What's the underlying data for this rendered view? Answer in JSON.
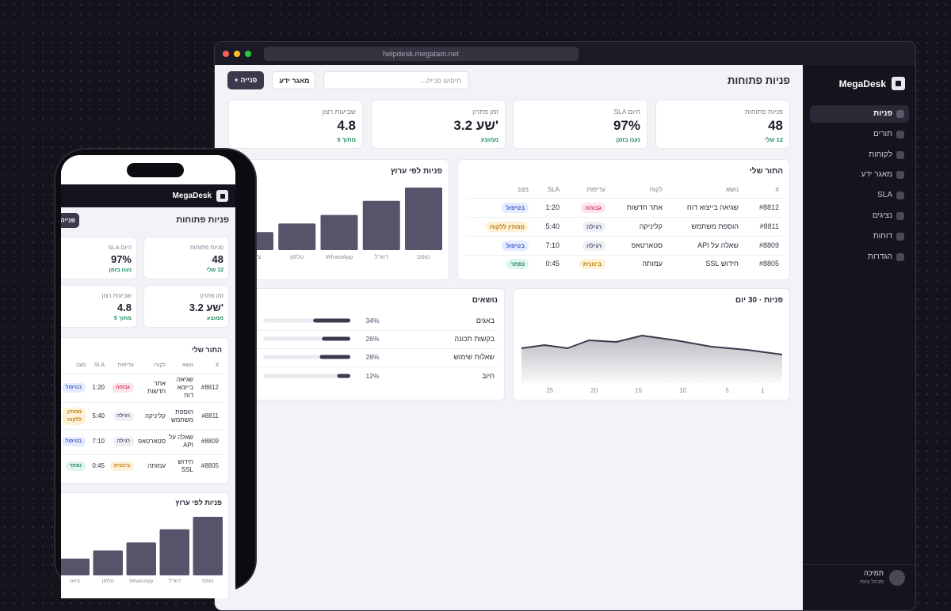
{
  "browser": {
    "url": "helpdesk.megatam.net"
  },
  "sidebar": {
    "brand": "MegaDesk",
    "nav": [
      "פניות",
      "תורים",
      "לקוחות",
      "מאגר ידע",
      "SLA",
      "נציגים",
      "דוחות",
      "הגדרות"
    ],
    "user": {
      "name": "תמיכה",
      "role": "מנהל צוות"
    }
  },
  "header": {
    "title": "פניות פתוחות",
    "search": "חיפוש פנייה...",
    "buttons": [
      "מאגר ידע",
      "+ פנייה"
    ]
  },
  "kpis": [
    {
      "label": "פניות פתוחות",
      "value": "48",
      "note": "12 שלי"
    },
    {
      "label": "SLA היום",
      "value": "97%",
      "note": "נענו בזמן"
    },
    {
      "label": "זמן פתרון",
      "value": "3.2 שע'",
      "note": "ממוצע"
    },
    {
      "label": "שביעות רצון",
      "value": "4.8",
      "note": "מתוך 5"
    }
  ],
  "queue": {
    "title": "התור שלי",
    "columns": [
      "#",
      "נושא",
      "לקוח",
      "עדיפות",
      "SLA",
      "מצב"
    ],
    "rows": [
      [
        "#8812",
        "שגיאה בייצוא דוח",
        "אתר חדשות",
        "גבוהה",
        "1:20",
        "בטיפול"
      ],
      [
        "#8811",
        "הוספת משתמש",
        "קליניקה",
        "רגילה",
        "5:40",
        "ממתין ללקוח"
      ],
      [
        "#8809",
        "שאלה על API",
        "סטארטאפ",
        "רגילה",
        "7:10",
        "בטיפול"
      ],
      [
        "#8805",
        "חידוש SSL",
        "עמותה",
        "בינונית",
        "0:45",
        "נפתר"
      ]
    ]
  },
  "chart_data": [
    {
      "type": "bar",
      "title": "פניות לפי ערוץ",
      "categories": [
        "טופס",
        "דוא\"ל",
        "WhatsApp",
        "טלפון",
        "צ'אט"
      ],
      "values": [
        80,
        63,
        45,
        34,
        23
      ],
      "color": "#55546a",
      "ylim": [
        0,
        80
      ]
    },
    {
      "type": "area",
      "title": "פניות · 30 יום",
      "x": [
        -1.2,
        2.8,
        6.8,
        10.8,
        14.6,
        17.5,
        20.6,
        23,
        25.6,
        28.2
      ],
      "values": [
        18,
        21,
        23,
        27,
        30,
        26,
        27,
        22,
        24,
        22
      ],
      "color": "#3b3a4d",
      "xlim": [
        -1.2,
        28.2
      ],
      "ylim": [
        0,
        40
      ],
      "xticks": [
        1,
        5,
        10,
        15,
        20,
        25
      ],
      "x_reversed": true
    },
    {
      "type": "hbar",
      "title": "נושאים",
      "categories": [
        "באגים",
        "בקשות תכונה",
        "שאלות שימוש",
        "חיוב"
      ],
      "values": [
        34,
        26,
        28,
        12
      ],
      "value_labels": [
        "34%",
        "26%",
        "28%",
        "12%"
      ],
      "color": "#3b3a4d",
      "xlim": [
        0,
        80
      ]
    }
  ]
}
